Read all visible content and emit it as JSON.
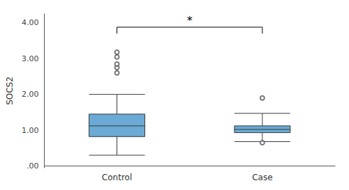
{
  "chart_data": {
    "type": "boxplot",
    "categories": [
      "Control",
      "Case"
    ],
    "boxes": [
      {
        "whisker_low": 0.3,
        "q1": 0.82,
        "median": 1.12,
        "q3": 1.45,
        "whisker_high": 2.0,
        "outliers": [
          2.6,
          2.75,
          2.85,
          3.05,
          3.18
        ]
      },
      {
        "whisker_low": 0.68,
        "q1": 0.93,
        "median": 1.02,
        "q3": 1.12,
        "whisker_high": 1.47,
        "outliers": [
          1.9,
          0.65
        ]
      }
    ],
    "color": "#6aaad4",
    "ylabel": "SOCS2",
    "ylim": [
      -0.05,
      4.25
    ],
    "yticks": [
      {
        "value": 0.0,
        "label": ".00"
      },
      {
        "value": 1.0,
        "label": "1.00"
      },
      {
        "value": 2.0,
        "label": "2.00"
      },
      {
        "value": 3.0,
        "label": "3.00"
      },
      {
        "value": 4.0,
        "label": "4.00"
      }
    ],
    "grid": false,
    "annotations": [
      {
        "text": "*",
        "from": "Control",
        "to": "Case",
        "y": 3.88,
        "y_low": 3.7
      }
    ]
  }
}
